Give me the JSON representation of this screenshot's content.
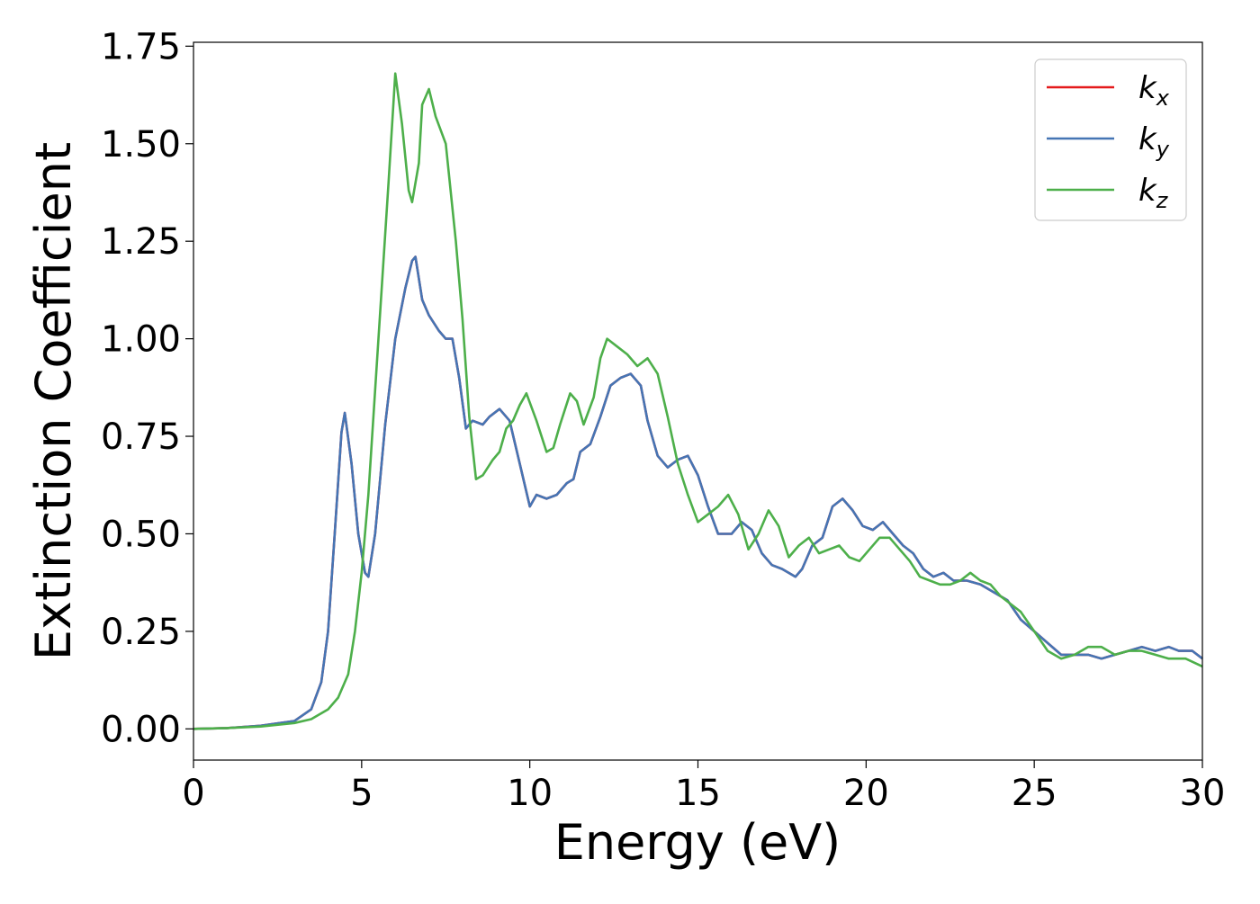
{
  "chart_data": {
    "type": "line",
    "title": "",
    "xlabel": "Energy (eV)",
    "ylabel": "Extinction Coefficient",
    "xlim": [
      0,
      30
    ],
    "ylim": [
      -0.08,
      1.76
    ],
    "xticks": [
      0,
      5,
      10,
      15,
      20,
      25,
      30
    ],
    "xtick_labels": [
      "0",
      "5",
      "10",
      "15",
      "20",
      "25",
      "30"
    ],
    "yticks": [
      0.0,
      0.25,
      0.5,
      0.75,
      1.0,
      1.25,
      1.5,
      1.75
    ],
    "ytick_labels": [
      "0.00",
      "0.25",
      "0.50",
      "0.75",
      "1.00",
      "1.25",
      "1.50",
      "1.75"
    ],
    "grid": false,
    "legend_position": "top-right",
    "series": [
      {
        "name": "k_x",
        "color": "#e41a1c",
        "x": [
          0,
          1,
          2,
          3,
          3.5,
          3.8,
          4.0,
          4.2,
          4.4,
          4.5,
          4.7,
          4.9,
          5.1,
          5.2,
          5.4,
          5.7,
          6.0,
          6.3,
          6.5,
          6.6,
          6.8,
          7.0,
          7.3,
          7.5,
          7.7,
          7.9,
          8.1,
          8.3,
          8.6,
          8.8,
          9.1,
          9.4,
          9.7,
          10.0,
          10.2,
          10.5,
          10.8,
          11.1,
          11.3,
          11.5,
          11.8,
          12.1,
          12.4,
          12.7,
          13.0,
          13.3,
          13.5,
          13.8,
          14.1,
          14.4,
          14.7,
          15.0,
          15.3,
          15.6,
          16.0,
          16.3,
          16.6,
          16.9,
          17.2,
          17.5,
          17.9,
          18.1,
          18.4,
          18.7,
          19.0,
          19.3,
          19.6,
          19.9,
          20.2,
          20.5,
          20.8,
          21.1,
          21.4,
          21.7,
          22.0,
          22.3,
          22.6,
          23.0,
          23.4,
          23.8,
          24.2,
          24.6,
          25.0,
          25.4,
          25.8,
          26.2,
          26.6,
          27.0,
          27.4,
          27.8,
          28.2,
          28.6,
          29.0,
          29.3,
          29.7,
          30.0
        ],
        "y": [
          0.0,
          0.002,
          0.008,
          0.02,
          0.05,
          0.12,
          0.25,
          0.5,
          0.76,
          0.81,
          0.68,
          0.5,
          0.4,
          0.39,
          0.5,
          0.78,
          1.0,
          1.13,
          1.2,
          1.21,
          1.1,
          1.06,
          1.02,
          1.0,
          1.0,
          0.9,
          0.77,
          0.79,
          0.78,
          0.8,
          0.82,
          0.79,
          0.68,
          0.57,
          0.6,
          0.59,
          0.6,
          0.63,
          0.64,
          0.71,
          0.73,
          0.8,
          0.88,
          0.9,
          0.91,
          0.88,
          0.79,
          0.7,
          0.67,
          0.69,
          0.7,
          0.65,
          0.57,
          0.5,
          0.5,
          0.53,
          0.51,
          0.45,
          0.42,
          0.41,
          0.39,
          0.41,
          0.47,
          0.49,
          0.57,
          0.59,
          0.56,
          0.52,
          0.51,
          0.53,
          0.5,
          0.47,
          0.45,
          0.41,
          0.39,
          0.4,
          0.38,
          0.38,
          0.37,
          0.35,
          0.33,
          0.28,
          0.25,
          0.22,
          0.19,
          0.19,
          0.19,
          0.18,
          0.19,
          0.2,
          0.21,
          0.2,
          0.21,
          0.2,
          0.2,
          0.18
        ]
      },
      {
        "name": "k_y",
        "color": "#4575b4",
        "x": [
          0,
          1,
          2,
          3,
          3.5,
          3.8,
          4.0,
          4.2,
          4.4,
          4.5,
          4.7,
          4.9,
          5.1,
          5.2,
          5.4,
          5.7,
          6.0,
          6.3,
          6.5,
          6.6,
          6.8,
          7.0,
          7.3,
          7.5,
          7.7,
          7.9,
          8.1,
          8.3,
          8.6,
          8.8,
          9.1,
          9.4,
          9.7,
          10.0,
          10.2,
          10.5,
          10.8,
          11.1,
          11.3,
          11.5,
          11.8,
          12.1,
          12.4,
          12.7,
          13.0,
          13.3,
          13.5,
          13.8,
          14.1,
          14.4,
          14.7,
          15.0,
          15.3,
          15.6,
          16.0,
          16.3,
          16.6,
          16.9,
          17.2,
          17.5,
          17.9,
          18.1,
          18.4,
          18.7,
          19.0,
          19.3,
          19.6,
          19.9,
          20.2,
          20.5,
          20.8,
          21.1,
          21.4,
          21.7,
          22.0,
          22.3,
          22.6,
          23.0,
          23.4,
          23.8,
          24.2,
          24.6,
          25.0,
          25.4,
          25.8,
          26.2,
          26.6,
          27.0,
          27.4,
          27.8,
          28.2,
          28.6,
          29.0,
          29.3,
          29.7,
          30.0
        ],
        "y": [
          0.0,
          0.002,
          0.008,
          0.02,
          0.05,
          0.12,
          0.25,
          0.5,
          0.76,
          0.81,
          0.68,
          0.5,
          0.4,
          0.39,
          0.5,
          0.78,
          1.0,
          1.13,
          1.2,
          1.21,
          1.1,
          1.06,
          1.02,
          1.0,
          1.0,
          0.9,
          0.77,
          0.79,
          0.78,
          0.8,
          0.82,
          0.79,
          0.68,
          0.57,
          0.6,
          0.59,
          0.6,
          0.63,
          0.64,
          0.71,
          0.73,
          0.8,
          0.88,
          0.9,
          0.91,
          0.88,
          0.79,
          0.7,
          0.67,
          0.69,
          0.7,
          0.65,
          0.57,
          0.5,
          0.5,
          0.53,
          0.51,
          0.45,
          0.42,
          0.41,
          0.39,
          0.41,
          0.47,
          0.49,
          0.57,
          0.59,
          0.56,
          0.52,
          0.51,
          0.53,
          0.5,
          0.47,
          0.45,
          0.41,
          0.39,
          0.4,
          0.38,
          0.38,
          0.37,
          0.35,
          0.33,
          0.28,
          0.25,
          0.22,
          0.19,
          0.19,
          0.19,
          0.18,
          0.19,
          0.2,
          0.21,
          0.2,
          0.21,
          0.2,
          0.2,
          0.18
        ]
      },
      {
        "name": "k_z",
        "color": "#4daf4a",
        "x": [
          0,
          1,
          2,
          3,
          3.5,
          4.0,
          4.3,
          4.6,
          4.8,
          5.0,
          5.2,
          5.5,
          5.8,
          6.0,
          6.2,
          6.4,
          6.5,
          6.7,
          6.8,
          7.0,
          7.2,
          7.5,
          7.8,
          8.0,
          8.2,
          8.4,
          8.6,
          8.9,
          9.1,
          9.3,
          9.5,
          9.7,
          9.9,
          10.2,
          10.5,
          10.7,
          10.9,
          11.2,
          11.4,
          11.6,
          11.9,
          12.1,
          12.3,
          12.6,
          12.9,
          13.2,
          13.5,
          13.8,
          14.1,
          14.4,
          14.7,
          15.0,
          15.3,
          15.6,
          15.9,
          16.2,
          16.5,
          16.8,
          17.1,
          17.4,
          17.7,
          18.0,
          18.3,
          18.6,
          18.9,
          19.2,
          19.5,
          19.8,
          20.1,
          20.4,
          20.7,
          21.0,
          21.3,
          21.6,
          21.9,
          22.2,
          22.5,
          22.8,
          23.1,
          23.4,
          23.7,
          24.0,
          24.3,
          24.6,
          25.0,
          25.4,
          25.8,
          26.2,
          26.6,
          27.0,
          27.4,
          27.8,
          28.2,
          28.6,
          29.0,
          29.5,
          30.0
        ],
        "y": [
          0.0,
          0.002,
          0.006,
          0.015,
          0.025,
          0.05,
          0.08,
          0.14,
          0.25,
          0.4,
          0.6,
          1.0,
          1.4,
          1.68,
          1.55,
          1.38,
          1.35,
          1.45,
          1.6,
          1.64,
          1.57,
          1.5,
          1.25,
          1.05,
          0.8,
          0.64,
          0.65,
          0.69,
          0.71,
          0.77,
          0.79,
          0.83,
          0.86,
          0.79,
          0.71,
          0.72,
          0.78,
          0.86,
          0.84,
          0.78,
          0.85,
          0.95,
          1.0,
          0.98,
          0.96,
          0.93,
          0.95,
          0.91,
          0.8,
          0.68,
          0.6,
          0.53,
          0.55,
          0.57,
          0.6,
          0.55,
          0.46,
          0.5,
          0.56,
          0.52,
          0.44,
          0.47,
          0.49,
          0.45,
          0.46,
          0.47,
          0.44,
          0.43,
          0.46,
          0.49,
          0.49,
          0.46,
          0.43,
          0.39,
          0.38,
          0.37,
          0.37,
          0.38,
          0.4,
          0.38,
          0.37,
          0.34,
          0.32,
          0.3,
          0.25,
          0.2,
          0.18,
          0.19,
          0.21,
          0.21,
          0.19,
          0.2,
          0.2,
          0.19,
          0.18,
          0.18,
          0.16
        ]
      }
    ]
  }
}
